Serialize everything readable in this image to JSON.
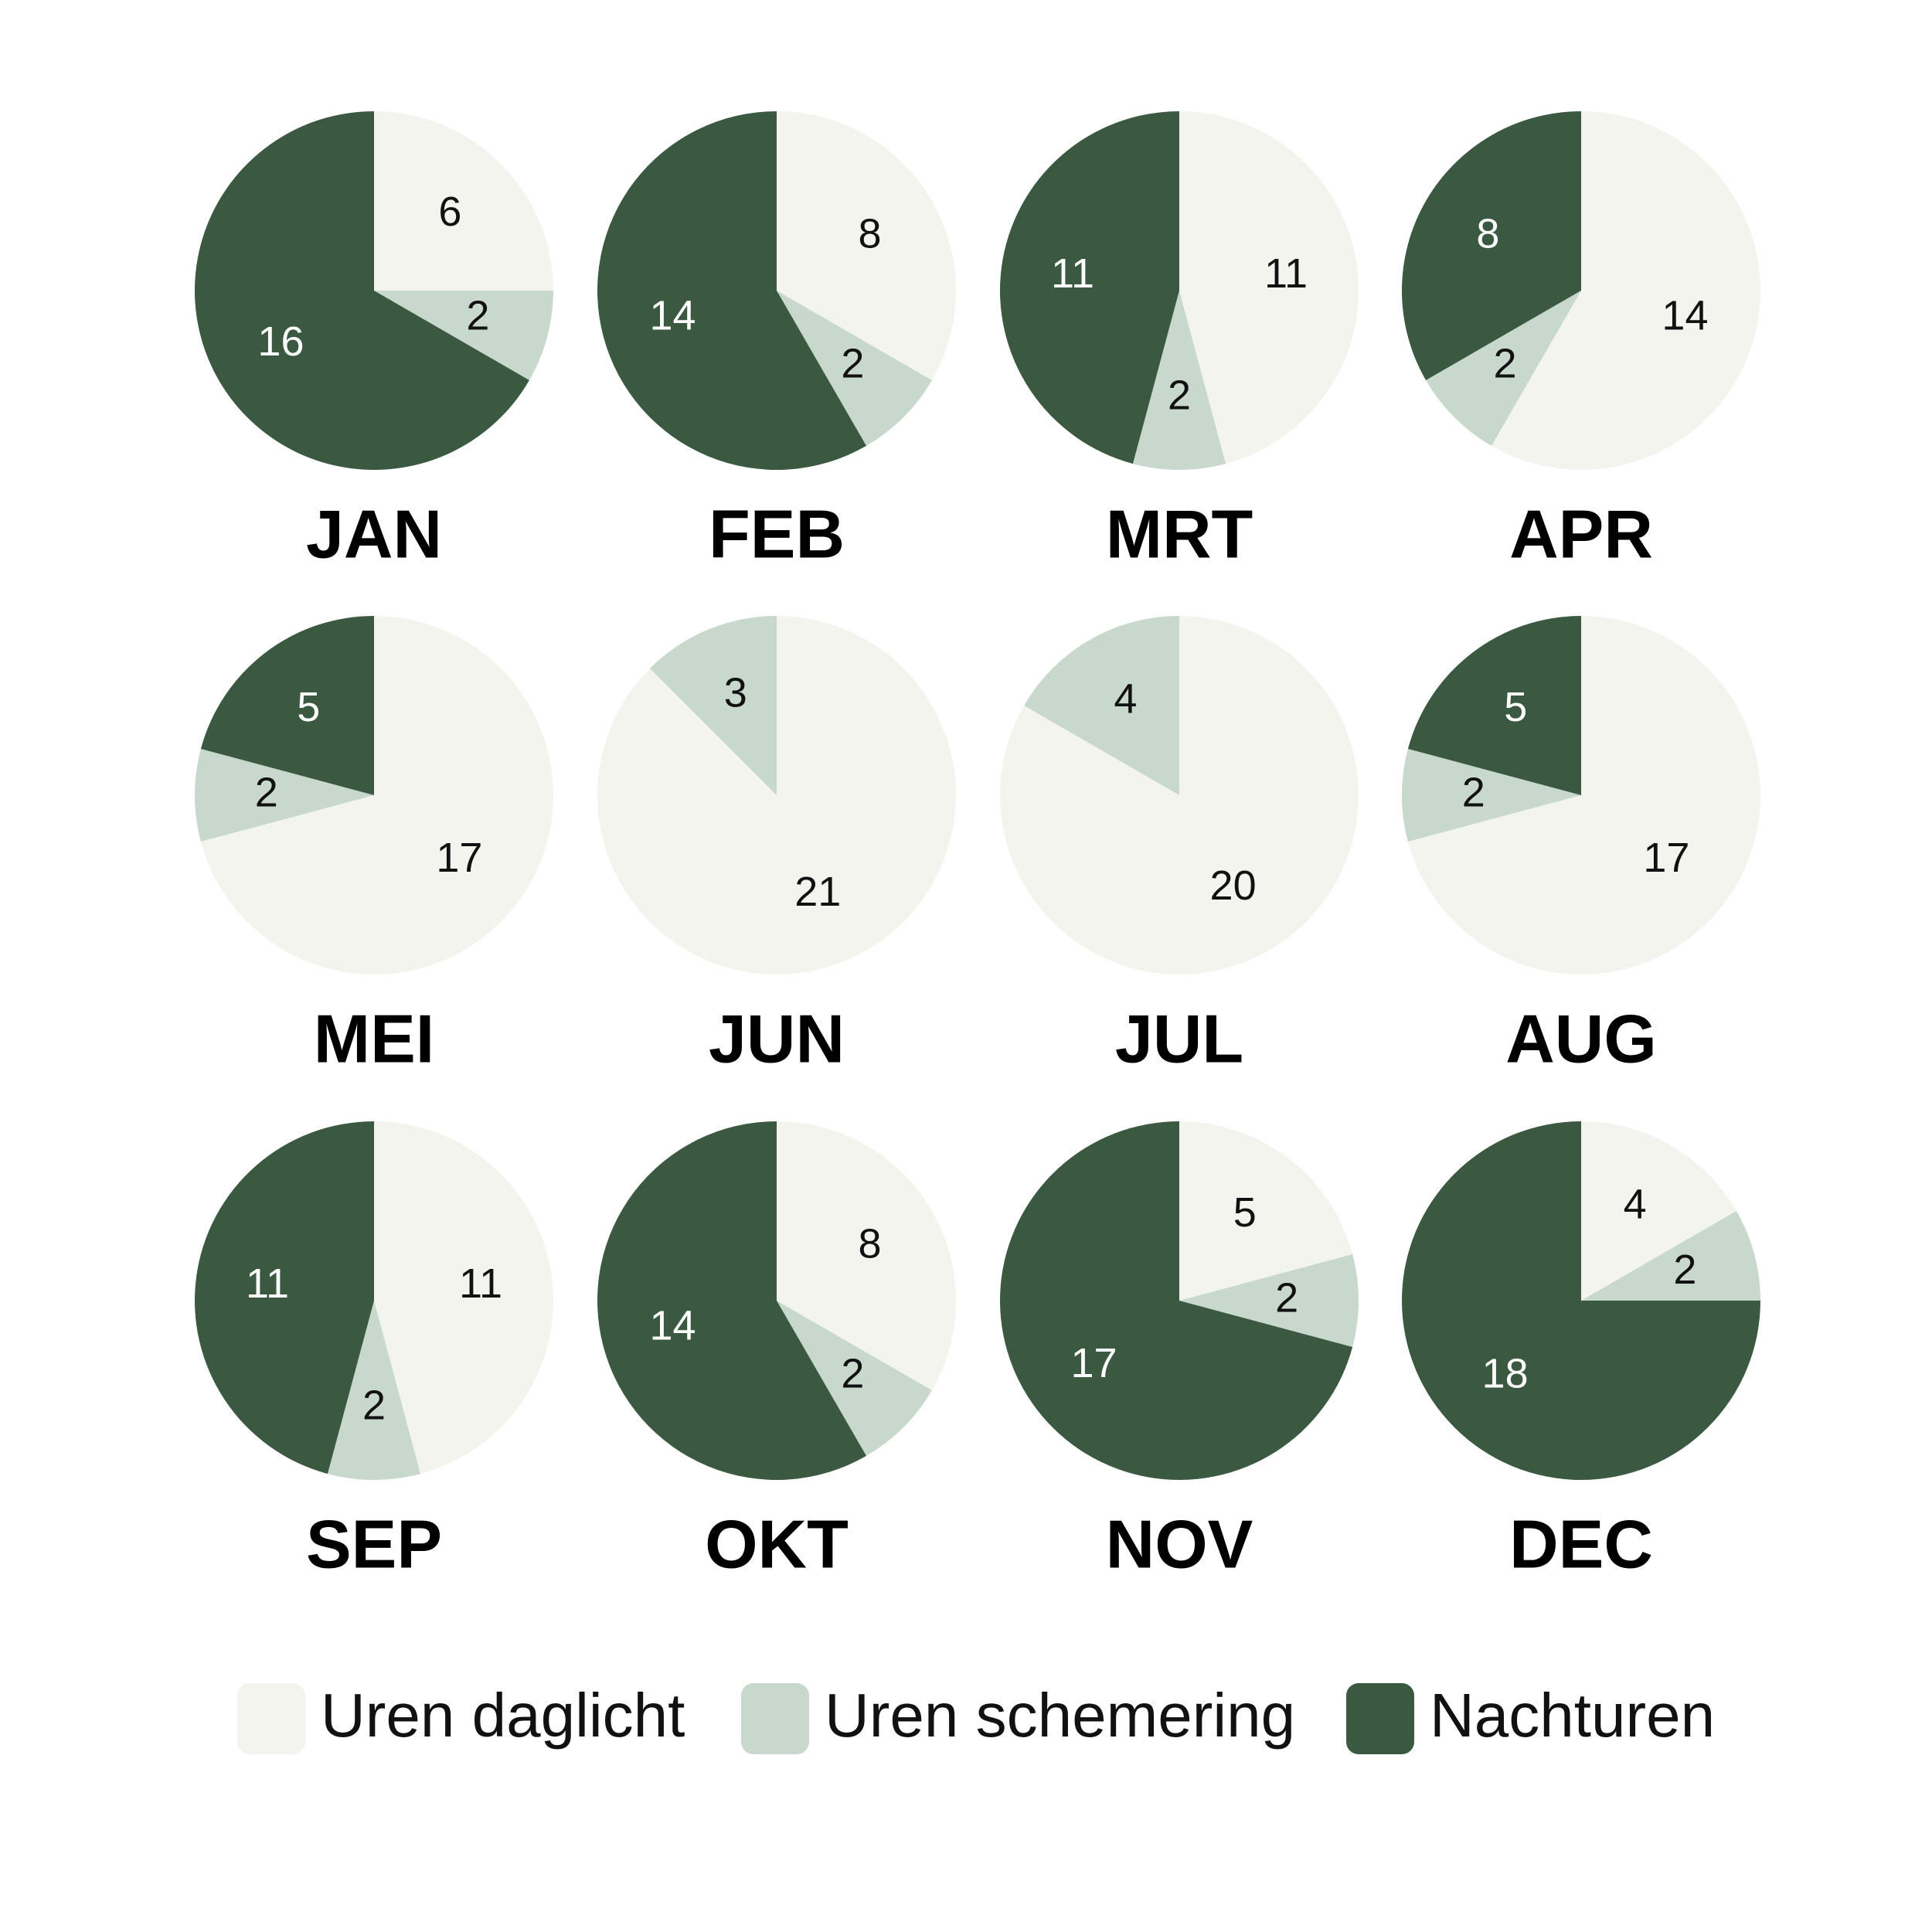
{
  "chart_data": [
    {
      "type": "pie",
      "title": "JAN",
      "values": [
        6,
        2,
        16
      ]
    },
    {
      "type": "pie",
      "title": "FEB",
      "values": [
        8,
        2,
        14
      ]
    },
    {
      "type": "pie",
      "title": "MRT",
      "values": [
        11,
        2,
        11
      ]
    },
    {
      "type": "pie",
      "title": "APR",
      "values": [
        14,
        2,
        8
      ]
    },
    {
      "type": "pie",
      "title": "MEI",
      "values": [
        17,
        2,
        5
      ]
    },
    {
      "type": "pie",
      "title": "JUN",
      "values": [
        21,
        3,
        0
      ]
    },
    {
      "type": "pie",
      "title": "JUL",
      "values": [
        20,
        4,
        0
      ]
    },
    {
      "type": "pie",
      "title": "AUG",
      "values": [
        17,
        2,
        5
      ]
    },
    {
      "type": "pie",
      "title": "SEP",
      "values": [
        11,
        2,
        11
      ]
    },
    {
      "type": "pie",
      "title": "OKT",
      "values": [
        8,
        2,
        14
      ]
    },
    {
      "type": "pie",
      "title": "NOV",
      "values": [
        5,
        2,
        17
      ]
    },
    {
      "type": "pie",
      "title": "DEC",
      "values": [
        4,
        2,
        18
      ]
    }
  ],
  "legend": [
    {
      "name": "Uren daglicht",
      "color": "#f3f4ee",
      "text_color": "#111111"
    },
    {
      "name": "Uren schemering",
      "color": "#c8d8cc",
      "text_color": "#111111"
    },
    {
      "name": "Nachturen",
      "color": "#3a5940",
      "text_color": "#ffffff"
    }
  ]
}
